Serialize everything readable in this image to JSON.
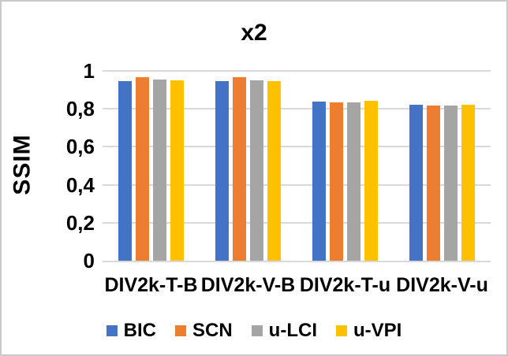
{
  "chart_data": {
    "type": "bar",
    "title": "x2",
    "ylabel": "SSIM",
    "xlabel": "",
    "categories": [
      "DIV2k-T-B",
      "DIV2k-V-B",
      "DIV2k-T-u",
      "DIV2k-V-u"
    ],
    "series": [
      {
        "name": "BIC",
        "color": "#4472C4",
        "values": [
          0.948,
          0.945,
          0.84,
          0.822
        ]
      },
      {
        "name": "SCN",
        "color": "#ED7D31",
        "values": [
          0.968,
          0.965,
          0.835,
          0.818
        ]
      },
      {
        "name": "u-LCI",
        "color": "#A5A5A5",
        "values": [
          0.954,
          0.95,
          0.834,
          0.817
        ]
      },
      {
        "name": "u-VPI",
        "color": "#FFC000",
        "values": [
          0.952,
          0.947,
          0.841,
          0.823
        ]
      }
    ],
    "ylim": [
      0,
      1
    ],
    "ytick_step": 0.2,
    "ytick_labels": [
      "0",
      "0,2",
      "0,4",
      "0,6",
      "0,8",
      "1"
    ],
    "grid": true,
    "legend_position": "bottom"
  },
  "colors": {
    "background": "#FFFFFF",
    "border": "#C9C9C9",
    "gridline": "#D9D9D9",
    "text": "#000000"
  }
}
